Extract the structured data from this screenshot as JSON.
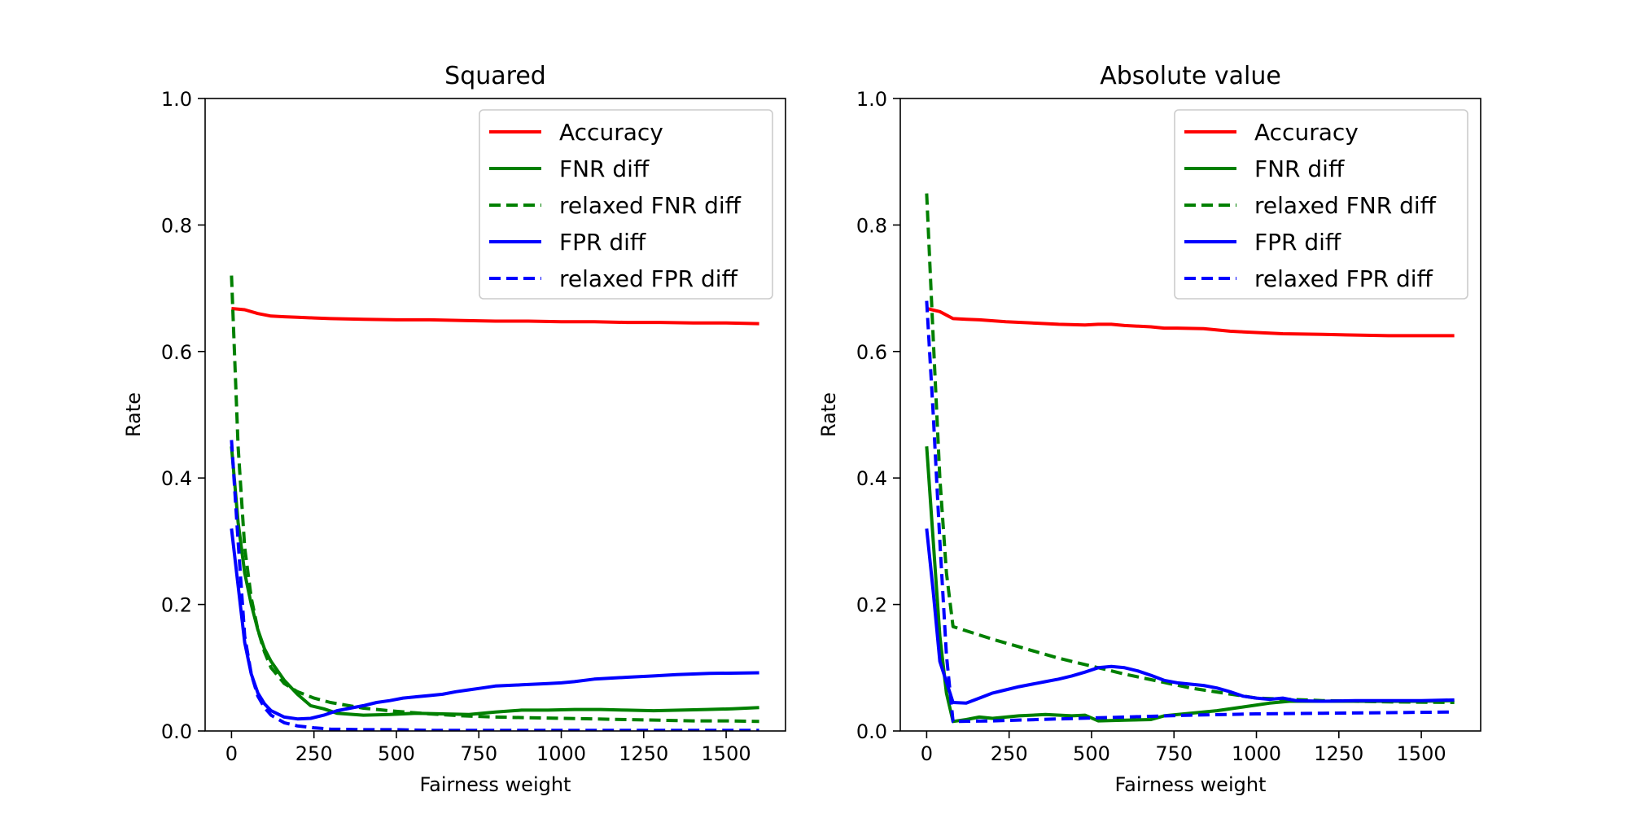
{
  "chart_data": [
    {
      "type": "line",
      "title": "Squared",
      "xlabel": "Fairness weight",
      "ylabel": "Rate",
      "xlim": [
        -80,
        1680
      ],
      "ylim": [
        0.0,
        1.0
      ],
      "xticks": [
        "0",
        "250",
        "500",
        "750",
        "1000",
        "1250",
        "1500"
      ],
      "yticks": [
        "0.0",
        "0.2",
        "0.4",
        "0.6",
        "0.8",
        "1.0"
      ],
      "grid": false,
      "legend_position": "top-right",
      "series": [
        {
          "name": "Accuracy",
          "color": "#ff0000",
          "dash": "solid",
          "x": [
            0,
            40,
            80,
            120,
            160,
            200,
            250,
            300,
            400,
            500,
            600,
            700,
            800,
            900,
            1000,
            1100,
            1200,
            1300,
            1400,
            1500,
            1600
          ],
          "y": [
            0.668,
            0.666,
            0.66,
            0.656,
            0.655,
            0.654,
            0.653,
            0.652,
            0.651,
            0.65,
            0.65,
            0.649,
            0.648,
            0.648,
            0.647,
            0.647,
            0.646,
            0.646,
            0.645,
            0.645,
            0.644
          ]
        },
        {
          "name": "FNR diff",
          "color": "#008000",
          "dash": "solid",
          "x": [
            0,
            20,
            40,
            60,
            80,
            100,
            120,
            160,
            200,
            240,
            280,
            320,
            400,
            480,
            560,
            640,
            720,
            800,
            880,
            960,
            1040,
            1120,
            1200,
            1280,
            1360,
            1440,
            1520,
            1600
          ],
          "y": [
            0.45,
            0.33,
            0.25,
            0.2,
            0.16,
            0.13,
            0.11,
            0.08,
            0.058,
            0.04,
            0.035,
            0.028,
            0.025,
            0.026,
            0.028,
            0.027,
            0.026,
            0.03,
            0.033,
            0.033,
            0.034,
            0.034,
            0.033,
            0.032,
            0.033,
            0.034,
            0.035,
            0.037
          ]
        },
        {
          "name": "relaxed FNR diff",
          "color": "#008000",
          "dash": "dashed",
          "x": [
            0,
            20,
            40,
            60,
            80,
            100,
            120,
            160,
            200,
            250,
            300,
            400,
            500,
            600,
            700,
            800,
            900,
            1000,
            1100,
            1200,
            1300,
            1400,
            1500,
            1600
          ],
          "y": [
            0.72,
            0.45,
            0.29,
            0.21,
            0.16,
            0.125,
            0.1,
            0.075,
            0.062,
            0.052,
            0.045,
            0.036,
            0.031,
            0.027,
            0.024,
            0.022,
            0.021,
            0.02,
            0.019,
            0.018,
            0.017,
            0.016,
            0.016,
            0.015
          ]
        },
        {
          "name": "FPR diff",
          "color": "#0000ff",
          "dash": "solid",
          "x": [
            0,
            20,
            40,
            60,
            80,
            100,
            120,
            160,
            200,
            240,
            280,
            320,
            360,
            400,
            440,
            480,
            520,
            560,
            600,
            640,
            680,
            720,
            760,
            800,
            880,
            960,
            1000,
            1040,
            1100,
            1200,
            1280,
            1350,
            1450,
            1600
          ],
          "y": [
            0.32,
            0.23,
            0.14,
            0.09,
            0.06,
            0.043,
            0.032,
            0.022,
            0.019,
            0.02,
            0.025,
            0.032,
            0.036,
            0.04,
            0.045,
            0.048,
            0.052,
            0.054,
            0.056,
            0.058,
            0.062,
            0.065,
            0.068,
            0.071,
            0.073,
            0.075,
            0.076,
            0.078,
            0.082,
            0.085,
            0.087,
            0.089,
            0.091,
            0.092
          ]
        },
        {
          "name": "relaxed FPR diff",
          "color": "#0000ff",
          "dash": "dashed",
          "x": [
            0,
            20,
            40,
            60,
            80,
            100,
            120,
            160,
            200,
            250,
            300,
            400,
            500,
            600,
            800,
            1000,
            1200,
            1400,
            1600
          ],
          "y": [
            0.46,
            0.3,
            0.15,
            0.09,
            0.055,
            0.037,
            0.025,
            0.013,
            0.008,
            0.005,
            0.003,
            0.002,
            0.002,
            0.001,
            0.001,
            0.001,
            0.001,
            0.001,
            0.001
          ]
        }
      ]
    },
    {
      "type": "line",
      "title": "Absolute value",
      "xlabel": "Fairness weight",
      "ylabel": "Rate",
      "xlim": [
        -80,
        1680
      ],
      "ylim": [
        0.0,
        1.0
      ],
      "xticks": [
        "0",
        "250",
        "500",
        "750",
        "1000",
        "1250",
        "1500"
      ],
      "yticks": [
        "0.0",
        "0.2",
        "0.4",
        "0.6",
        "0.8",
        "1.0"
      ],
      "grid": false,
      "legend_position": "top-right",
      "series": [
        {
          "name": "Accuracy",
          "color": "#ff0000",
          "dash": "solid",
          "x": [
            0,
            40,
            80,
            120,
            160,
            240,
            320,
            400,
            480,
            520,
            560,
            600,
            680,
            720,
            760,
            840,
            920,
            960,
            1000,
            1080,
            1200,
            1300,
            1400,
            1500,
            1600
          ],
          "y": [
            0.668,
            0.663,
            0.652,
            0.651,
            0.65,
            0.647,
            0.645,
            0.643,
            0.642,
            0.643,
            0.643,
            0.641,
            0.639,
            0.637,
            0.637,
            0.636,
            0.632,
            0.631,
            0.63,
            0.628,
            0.627,
            0.626,
            0.625,
            0.625,
            0.625
          ]
        },
        {
          "name": "FNR diff",
          "color": "#008000",
          "dash": "solid",
          "x": [
            0,
            20,
            40,
            60,
            80,
            120,
            160,
            200,
            280,
            360,
            440,
            480,
            520,
            600,
            680,
            720,
            800,
            880,
            960,
            1040,
            1100,
            1200,
            1300,
            1400,
            1500,
            1600
          ],
          "y": [
            0.45,
            0.3,
            0.15,
            0.06,
            0.015,
            0.018,
            0.022,
            0.02,
            0.024,
            0.026,
            0.024,
            0.025,
            0.016,
            0.017,
            0.018,
            0.024,
            0.028,
            0.032,
            0.038,
            0.044,
            0.047,
            0.047,
            0.047,
            0.047,
            0.047,
            0.048
          ]
        },
        {
          "name": "relaxed FNR diff",
          "color": "#008000",
          "dash": "dashed",
          "x": [
            0,
            20,
            40,
            60,
            80,
            200,
            400,
            600,
            800,
            1000,
            1200,
            1400,
            1600
          ],
          "y": [
            0.85,
            0.62,
            0.4,
            0.25,
            0.165,
            0.145,
            0.115,
            0.09,
            0.068,
            0.052,
            0.048,
            0.046,
            0.045
          ]
        },
        {
          "name": "FPR diff",
          "color": "#0000ff",
          "dash": "solid",
          "x": [
            0,
            20,
            40,
            80,
            120,
            160,
            200,
            240,
            280,
            320,
            360,
            400,
            440,
            480,
            520,
            560,
            600,
            640,
            680,
            720,
            760,
            800,
            840,
            880,
            920,
            960,
            1000,
            1040,
            1080,
            1120,
            1200,
            1300,
            1400,
            1500,
            1600
          ],
          "y": [
            0.32,
            0.22,
            0.11,
            0.045,
            0.044,
            0.052,
            0.06,
            0.065,
            0.07,
            0.074,
            0.078,
            0.082,
            0.087,
            0.093,
            0.1,
            0.102,
            0.1,
            0.095,
            0.088,
            0.08,
            0.076,
            0.074,
            0.072,
            0.068,
            0.062,
            0.055,
            0.052,
            0.05,
            0.052,
            0.048,
            0.047,
            0.048,
            0.048,
            0.048,
            0.049
          ]
        },
        {
          "name": "relaxed FPR diff",
          "color": "#0000ff",
          "dash": "dashed",
          "x": [
            0,
            20,
            40,
            60,
            80,
            200,
            400,
            600,
            800,
            1000,
            1200,
            1400,
            1600
          ],
          "y": [
            0.68,
            0.5,
            0.3,
            0.12,
            0.015,
            0.016,
            0.019,
            0.022,
            0.025,
            0.027,
            0.028,
            0.029,
            0.03
          ]
        }
      ]
    }
  ]
}
